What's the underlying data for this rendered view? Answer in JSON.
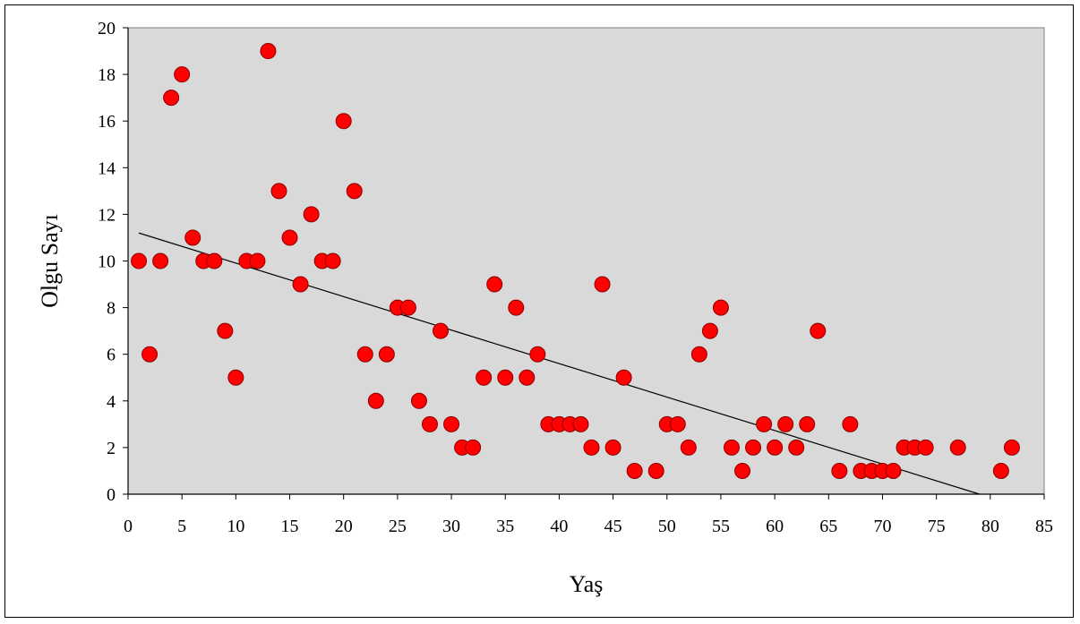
{
  "chart_data": {
    "type": "scatter",
    "xlabel": "Yaş",
    "ylabel": "Olgu Sayı",
    "xlim": [
      0,
      85
    ],
    "ylim": [
      0,
      20
    ],
    "xticks": [
      "0",
      "5",
      "10",
      "15",
      "20",
      "25",
      "30",
      "35",
      "40",
      "45",
      "50",
      "55",
      "60",
      "65",
      "70",
      "75",
      "80",
      "85"
    ],
    "yticks": [
      "0",
      "2",
      "4",
      "6",
      "8",
      "10",
      "12",
      "14",
      "16",
      "18",
      "20"
    ],
    "grid": false,
    "legend": "none",
    "colors": {
      "plot_background": "#d9d9d9",
      "marker_fill": "#ff0000",
      "marker_edge": "#8b0000",
      "trendline": "#000000"
    },
    "trendline": {
      "type": "linear",
      "x": [
        1,
        79
      ],
      "y": [
        11.2,
        0
      ]
    },
    "series": [
      {
        "x": [
          1,
          2,
          3,
          4,
          5,
          6,
          7,
          8,
          9,
          10,
          11,
          12,
          13,
          14,
          15,
          16,
          17,
          18,
          19,
          20,
          21,
          22,
          23,
          24,
          25,
          26,
          27,
          28,
          29,
          30,
          31,
          32,
          33,
          34,
          35,
          36,
          37,
          38,
          39,
          40,
          41,
          42,
          43,
          44,
          45,
          46,
          47,
          49,
          50,
          51,
          52,
          53,
          54,
          55,
          56,
          57,
          58,
          59,
          60,
          61,
          62,
          63,
          64,
          66,
          67,
          68,
          69,
          70,
          71,
          72,
          73,
          74,
          77,
          81,
          82
        ],
        "y": [
          10,
          6,
          10,
          17,
          18,
          11,
          10,
          10,
          7,
          5,
          10,
          10,
          19,
          13,
          11,
          9,
          12,
          10,
          10,
          16,
          13,
          6,
          4,
          6,
          8,
          8,
          4,
          3,
          7,
          3,
          2,
          2,
          5,
          9,
          5,
          8,
          5,
          6,
          3,
          3,
          3,
          3,
          2,
          9,
          2,
          5,
          1,
          1,
          3,
          3,
          2,
          6,
          7,
          8,
          2,
          1,
          2,
          3,
          2,
          3,
          2,
          3,
          7,
          1,
          3,
          1,
          1,
          1,
          1,
          2,
          2,
          2,
          2,
          1,
          2
        ]
      }
    ]
  }
}
